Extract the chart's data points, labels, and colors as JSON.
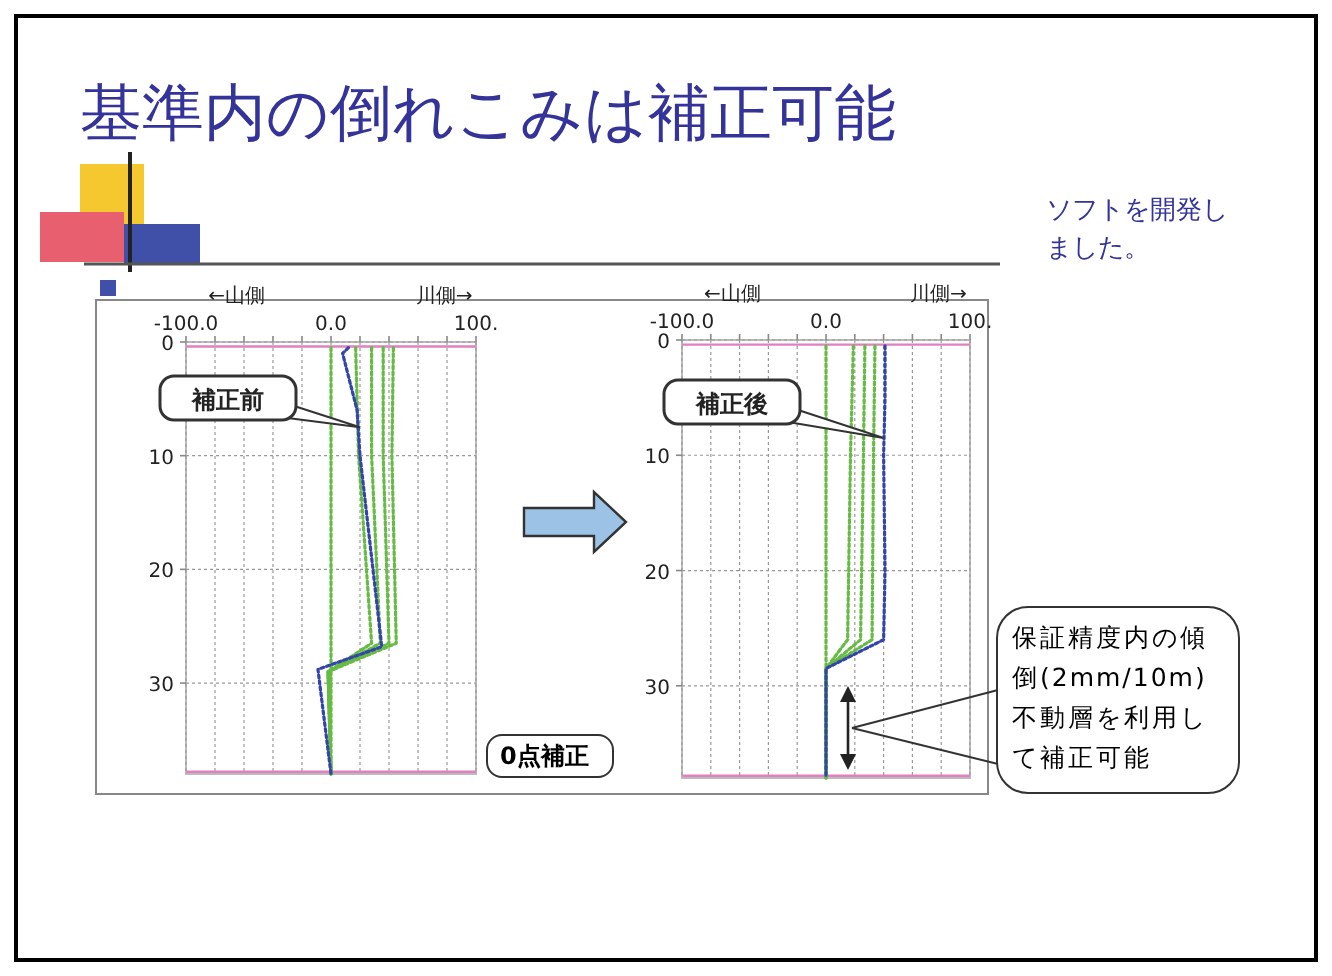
{
  "chart_data": [
    {
      "type": "line",
      "title": "基準内の倒れこみは補正可能",
      "xlim": [
        -100,
        100
      ],
      "ylim": [
        38,
        0
      ],
      "xticks": [
        {
          "value": -100,
          "label": "-100.0"
        },
        {
          "value": -80,
          "label": null
        },
        {
          "value": -60,
          "label": null
        },
        {
          "value": -40,
          "label": null
        },
        {
          "value": -20,
          "label": null
        },
        {
          "value": 0,
          "label": "0.0"
        },
        {
          "value": 20,
          "label": null
        },
        {
          "value": 40,
          "label": null
        },
        {
          "value": 60,
          "label": null
        },
        {
          "value": 80,
          "label": null
        },
        {
          "value": 100,
          "label": "100."
        }
      ],
      "yticks": [
        0,
        10,
        20,
        30
      ],
      "grid": true,
      "line_style": "dotted",
      "ref_lines": [
        {
          "axis": "y",
          "value": 0.4,
          "color": "#e080c0"
        },
        {
          "axis": "y",
          "value": 37.8,
          "color": "#e080c0"
        }
      ],
      "annotations": [
        "←山側",
        "川側→",
        {
          "text": "補正前",
          "x": 20,
          "y": 7.5
        },
        "0点補正"
      ],
      "series": [
        {
          "color": "#66bb44",
          "x": [
            0,
            0,
            0
          ],
          "values": [
            0.5,
            28,
            38
          ]
        },
        {
          "color": "#66bb44",
          "x": [
            17,
            19,
            28,
            -2,
            0
          ],
          "values": [
            0.5,
            10,
            26.5,
            29,
            38
          ]
        },
        {
          "color": "#66bb44",
          "x": [
            28,
            28,
            34,
            -2,
            0
          ],
          "values": [
            0.5,
            10,
            26.5,
            29,
            38
          ]
        },
        {
          "color": "#66bb44",
          "x": [
            36,
            36,
            40,
            -2,
            0
          ],
          "values": [
            0.5,
            10,
            26.5,
            29,
            38
          ]
        },
        {
          "color": "#66bb44",
          "x": [
            43,
            42,
            45,
            -2,
            0
          ],
          "values": [
            0.5,
            10,
            26.5,
            29,
            38
          ]
        },
        {
          "color": "#3344aa",
          "x": [
            12,
            8,
            18,
            20,
            35,
            -9,
            0
          ],
          "values": [
            0.5,
            1,
            6,
            10,
            26.8,
            28.8,
            38
          ]
        }
      ]
    },
    {
      "type": "line",
      "xlim": [
        -100,
        100
      ],
      "ylim": [
        38,
        0
      ],
      "xticks": [
        {
          "value": -100,
          "label": "-100.0"
        },
        {
          "value": -80,
          "label": null
        },
        {
          "value": -60,
          "label": null
        },
        {
          "value": -40,
          "label": null
        },
        {
          "value": -20,
          "label": null
        },
        {
          "value": 0,
          "label": "0.0"
        },
        {
          "value": 20,
          "label": null
        },
        {
          "value": 40,
          "label": null
        },
        {
          "value": 60,
          "label": null
        },
        {
          "value": 80,
          "label": null
        },
        {
          "value": 100,
          "label": "100."
        }
      ],
      "yticks": [
        0,
        10,
        20,
        30
      ],
      "grid": true,
      "line_style": "dotted",
      "ref_lines": [
        {
          "axis": "y",
          "value": 0.4,
          "color": "#e080c0"
        },
        {
          "axis": "y",
          "value": 37.8,
          "color": "#e080c0"
        }
      ],
      "annotations": [
        "←山側",
        "川側→",
        {
          "text": "補正後",
          "x": 40,
          "y": 8.5
        },
        "保証精度内の傾倒(2mm/10m)不動層を利用して補正可能",
        "ソフトを開発しました。"
      ],
      "series": [
        {
          "color": "#66bb44",
          "x": [
            0,
            0,
            0
          ],
          "values": [
            0.5,
            28,
            38
          ]
        },
        {
          "color": "#66bb44",
          "x": [
            19,
            17,
            15,
            0,
            0
          ],
          "values": [
            0.5,
            10,
            26,
            28.5,
            38
          ]
        },
        {
          "color": "#66bb44",
          "x": [
            27,
            26,
            24,
            0,
            0
          ],
          "values": [
            0.5,
            10,
            26,
            28.5,
            38
          ]
        },
        {
          "color": "#66bb44",
          "x": [
            34,
            33,
            32,
            0,
            0
          ],
          "values": [
            0.5,
            10,
            26,
            28.5,
            38
          ]
        },
        {
          "color": "#3344aa",
          "x": [
            41,
            41,
            40,
            41,
            40,
            0,
            0
          ],
          "values": [
            0.5,
            5,
            10,
            20,
            26,
            28.5,
            38
          ]
        }
      ]
    }
  ]
}
